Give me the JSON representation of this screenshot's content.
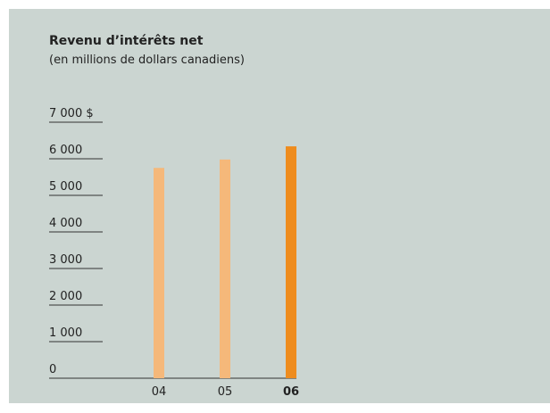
{
  "chart_data": {
    "type": "bar",
    "title": "Revenu d’intérêts net",
    "subtitle": "(en millions de dollars canadiens)",
    "categories": [
      "04",
      "05",
      "06"
    ],
    "values": [
      5750,
      5980,
      6340
    ],
    "colors": [
      "#f5b87a",
      "#f5b87a",
      "#ee8c1e"
    ],
    "highlight": 2,
    "ylim": [
      0,
      7000
    ],
    "yticks": [
      0,
      {
        "value": 1000,
        "label": "1 000"
      },
      {
        "value": 2000,
        "label": "2 000"
      },
      {
        "value": 3000,
        "label": "3 000"
      },
      {
        "value": 4000,
        "label": "4 000"
      },
      {
        "value": 5000,
        "label": "5 000"
      },
      {
        "value": 6000,
        "label": "6 000"
      },
      {
        "value": 7000,
        "label": "7 000 $"
      }
    ]
  }
}
